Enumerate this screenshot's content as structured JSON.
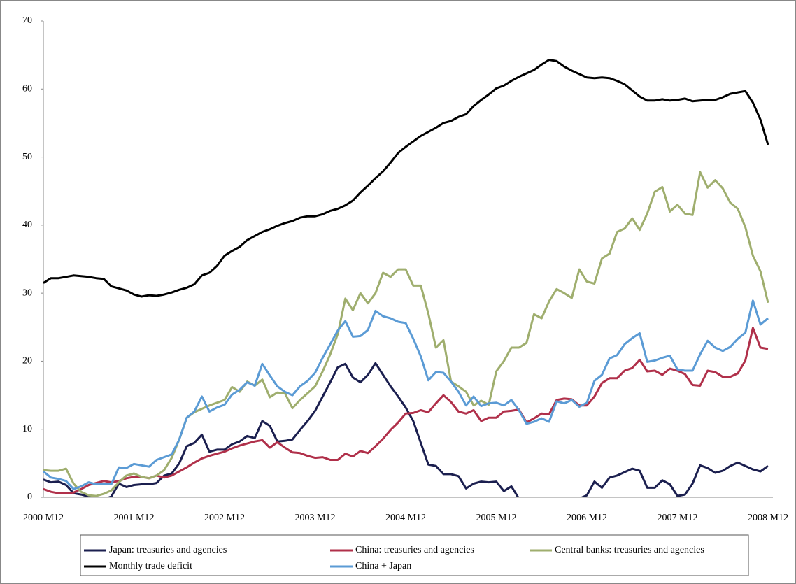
{
  "chart_data": {
    "type": "line",
    "categories": [
      "2000 M12",
      null,
      null,
      null,
      null,
      null,
      null,
      null,
      null,
      null,
      null,
      null,
      "2001 M12",
      null,
      null,
      null,
      null,
      null,
      null,
      null,
      null,
      null,
      null,
      null,
      "2002 M12",
      null,
      null,
      null,
      null,
      null,
      null,
      null,
      null,
      null,
      null,
      null,
      "2003 M12",
      null,
      null,
      null,
      null,
      null,
      null,
      null,
      null,
      null,
      null,
      null,
      "2004 M12",
      null,
      null,
      null,
      null,
      null,
      null,
      null,
      null,
      null,
      null,
      null,
      "2005 M12",
      null,
      null,
      null,
      null,
      null,
      null,
      null,
      null,
      null,
      null,
      null,
      "2006 M12",
      null,
      null,
      null,
      null,
      null,
      null,
      null,
      null,
      null,
      null,
      null,
      "2007 M12",
      null,
      null,
      null,
      null,
      null,
      null,
      null,
      null,
      null,
      null,
      null,
      "2008 M12"
    ],
    "series": [
      {
        "name": "Japan: treasuries and agencies",
        "color": "#1b1f4f",
        "values": [
          2.6,
          2.2,
          2.3,
          1.8,
          0.6,
          0.4,
          0.1,
          -0.2,
          -0.3,
          0.1,
          2.0,
          1.5,
          1.8,
          1.9,
          1.9,
          2.1,
          3.2,
          3.5,
          5.0,
          7.5,
          8.0,
          9.2,
          6.7,
          7.0,
          7.0,
          7.8,
          8.2,
          9.0,
          8.7,
          11.2,
          10.5,
          8.2,
          8.3,
          8.5,
          9.9,
          11.2,
          12.7,
          14.8,
          16.9,
          19.1,
          19.6,
          17.6,
          16.9,
          18.0,
          19.7,
          18.0,
          16.3,
          14.8,
          13.2,
          11.2,
          8.0,
          4.8,
          4.6,
          3.4,
          3.4,
          3.1,
          1.3,
          2.0,
          2.3,
          2.2,
          2.3,
          0.9,
          1.6,
          -0.2,
          -1.0,
          -1.0,
          -1.0,
          -1.0,
          -1.0,
          -1.0,
          -0.5,
          -0.2,
          0.3,
          2.3,
          1.4,
          2.9,
          3.2,
          3.7,
          4.2,
          3.9,
          1.4,
          1.4,
          2.5,
          1.9,
          0.2,
          0.4,
          2.0,
          4.7,
          4.3,
          3.6,
          3.9,
          4.6,
          5.1,
          4.6,
          4.1,
          3.8,
          4.6
        ]
      },
      {
        "name": "China: treasuries and agencies",
        "color": "#b0304a",
        "values": [
          1.2,
          0.8,
          0.6,
          0.6,
          0.7,
          1.2,
          1.8,
          2.1,
          2.4,
          2.2,
          2.4,
          2.8,
          3.0,
          3.0,
          2.8,
          3.2,
          2.9,
          3.2,
          3.8,
          4.4,
          5.1,
          5.7,
          6.1,
          6.4,
          6.7,
          7.2,
          7.6,
          7.9,
          8.2,
          8.4,
          7.3,
          8.1,
          7.3,
          6.6,
          6.5,
          6.1,
          5.8,
          5.9,
          5.5,
          5.5,
          6.4,
          6.0,
          6.8,
          6.5,
          7.5,
          8.6,
          9.9,
          11.0,
          12.3,
          12.4,
          12.8,
          12.5,
          13.8,
          15.0,
          14.0,
          12.6,
          12.3,
          12.8,
          11.2,
          11.7,
          11.7,
          12.6,
          12.7,
          12.9,
          11.0,
          11.6,
          12.3,
          12.2,
          14.3,
          14.5,
          14.4,
          13.5,
          13.5,
          14.8,
          16.8,
          17.5,
          17.5,
          18.6,
          19.0,
          20.2,
          18.5,
          18.6,
          18.0,
          18.9,
          18.6,
          18.1,
          16.5,
          16.4,
          18.6,
          18.4,
          17.7,
          17.7,
          18.2,
          20.1,
          24.9,
          22.0,
          21.8
        ]
      },
      {
        "name": "Central banks: treasuries and agencies",
        "color": "#9fae6e",
        "values": [
          4.0,
          3.9,
          3.9,
          4.2,
          2.0,
          0.8,
          0.3,
          0.2,
          0.5,
          1.0,
          2.2,
          3.2,
          3.5,
          3.0,
          2.8,
          3.2,
          4.0,
          5.8,
          8.5,
          11.7,
          12.5,
          13.0,
          13.5,
          13.9,
          14.3,
          16.2,
          15.5,
          17.0,
          16.4,
          17.3,
          14.7,
          15.4,
          15.3,
          13.1,
          14.3,
          15.3,
          16.3,
          18.5,
          21.0,
          24.0,
          29.2,
          27.5,
          30.0,
          28.5,
          30.0,
          33.0,
          32.4,
          33.5,
          33.5,
          31.1,
          31.1,
          27.0,
          22.0,
          23.1,
          17.0,
          16.3,
          15.5,
          13.5,
          14.2,
          13.6,
          18.5,
          20.0,
          22.0,
          22.0,
          22.7,
          26.9,
          26.3,
          28.8,
          30.6,
          30.0,
          29.3,
          33.5,
          31.7,
          31.4,
          35.1,
          35.8,
          39.0,
          39.5,
          41.0,
          39.3,
          41.7,
          44.9,
          45.6,
          42.0,
          43.0,
          41.7,
          41.5,
          47.8,
          45.5,
          46.6,
          45.4,
          43.3,
          42.4,
          39.7,
          35.5,
          33.2,
          28.6
        ]
      },
      {
        "name": "Monthly trade deficit",
        "color": "#000000",
        "values": [
          31.5,
          32.2,
          32.2,
          32.4,
          32.6,
          32.5,
          32.4,
          32.2,
          32.1,
          31.0,
          30.7,
          30.4,
          29.8,
          29.5,
          29.7,
          29.6,
          29.8,
          30.1,
          30.5,
          30.8,
          31.3,
          32.6,
          33.0,
          34.0,
          35.5,
          36.2,
          36.8,
          37.8,
          38.4,
          39.0,
          39.4,
          39.9,
          40.3,
          40.6,
          41.1,
          41.3,
          41.3,
          41.6,
          42.1,
          42.4,
          42.9,
          43.6,
          44.8,
          45.8,
          46.9,
          47.9,
          49.2,
          50.6,
          51.5,
          52.3,
          53.1,
          53.7,
          54.3,
          55.0,
          55.3,
          55.9,
          56.3,
          57.5,
          58.4,
          59.2,
          60.1,
          60.5,
          61.2,
          61.8,
          62.3,
          62.8,
          63.6,
          64.3,
          64.1,
          63.3,
          62.7,
          62.2,
          61.7,
          61.6,
          61.7,
          61.6,
          61.2,
          60.7,
          59.8,
          58.9,
          58.3,
          58.3,
          58.5,
          58.3,
          58.4,
          58.6,
          58.2,
          58.3,
          58.4,
          58.4,
          58.8,
          59.3,
          59.5,
          59.7,
          58.0,
          55.5,
          51.8
        ]
      },
      {
        "name": "China + Japan",
        "color": "#5b9bd5",
        "values": [
          3.8,
          2.9,
          2.7,
          2.4,
          1.2,
          1.6,
          2.2,
          1.9,
          1.9,
          1.9,
          4.4,
          4.3,
          4.9,
          4.7,
          4.5,
          5.5,
          5.9,
          6.3,
          8.5,
          11.7,
          12.6,
          14.8,
          12.6,
          13.2,
          13.6,
          15.1,
          15.8,
          16.9,
          16.4,
          19.6,
          17.9,
          16.3,
          15.5,
          15.0,
          16.3,
          17.1,
          18.3,
          20.5,
          22.5,
          24.5,
          25.9,
          23.6,
          23.7,
          24.6,
          27.4,
          26.6,
          26.3,
          25.8,
          25.6,
          23.3,
          20.7,
          17.2,
          18.4,
          18.3,
          17.0,
          15.5,
          13.5,
          14.8,
          13.4,
          13.8,
          13.9,
          13.5,
          14.3,
          12.8,
          10.8,
          11.1,
          11.6,
          11.1,
          14.1,
          13.8,
          14.3,
          13.3,
          13.9,
          17.1,
          18.0,
          20.4,
          20.9,
          22.5,
          23.4,
          24.1,
          19.9,
          20.1,
          20.5,
          20.8,
          18.8,
          18.6,
          18.6,
          21.0,
          23.0,
          22.0,
          21.5,
          22.1,
          23.3,
          24.2,
          28.9,
          25.4,
          26.3
        ]
      }
    ],
    "ylim": [
      0,
      70
    ],
    "yticks": [
      0,
      10,
      20,
      30,
      40,
      50,
      60,
      70
    ],
    "grid": false,
    "legend": "bottom"
  }
}
